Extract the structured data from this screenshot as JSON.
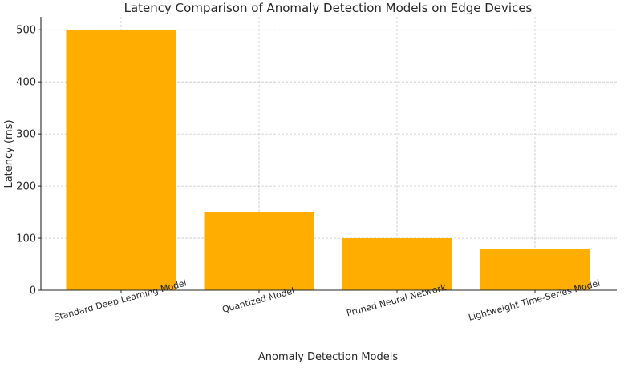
{
  "chart_data": {
    "type": "bar",
    "title": "Latency Comparison of Anomaly Detection Models on Edge Devices",
    "xlabel": "Anomaly Detection Models",
    "ylabel": "Latency (ms)",
    "categories": [
      "Standard Deep Learning Model",
      "Quantized Model",
      "Pruned Neural Network",
      "Lightweight Time-Series Model"
    ],
    "values": [
      500,
      150,
      100,
      80
    ],
    "ylim": [
      0,
      525
    ],
    "yticks": [
      0,
      100,
      200,
      300,
      400,
      500
    ],
    "grid": true,
    "bar_color": "#FFAE00"
  }
}
